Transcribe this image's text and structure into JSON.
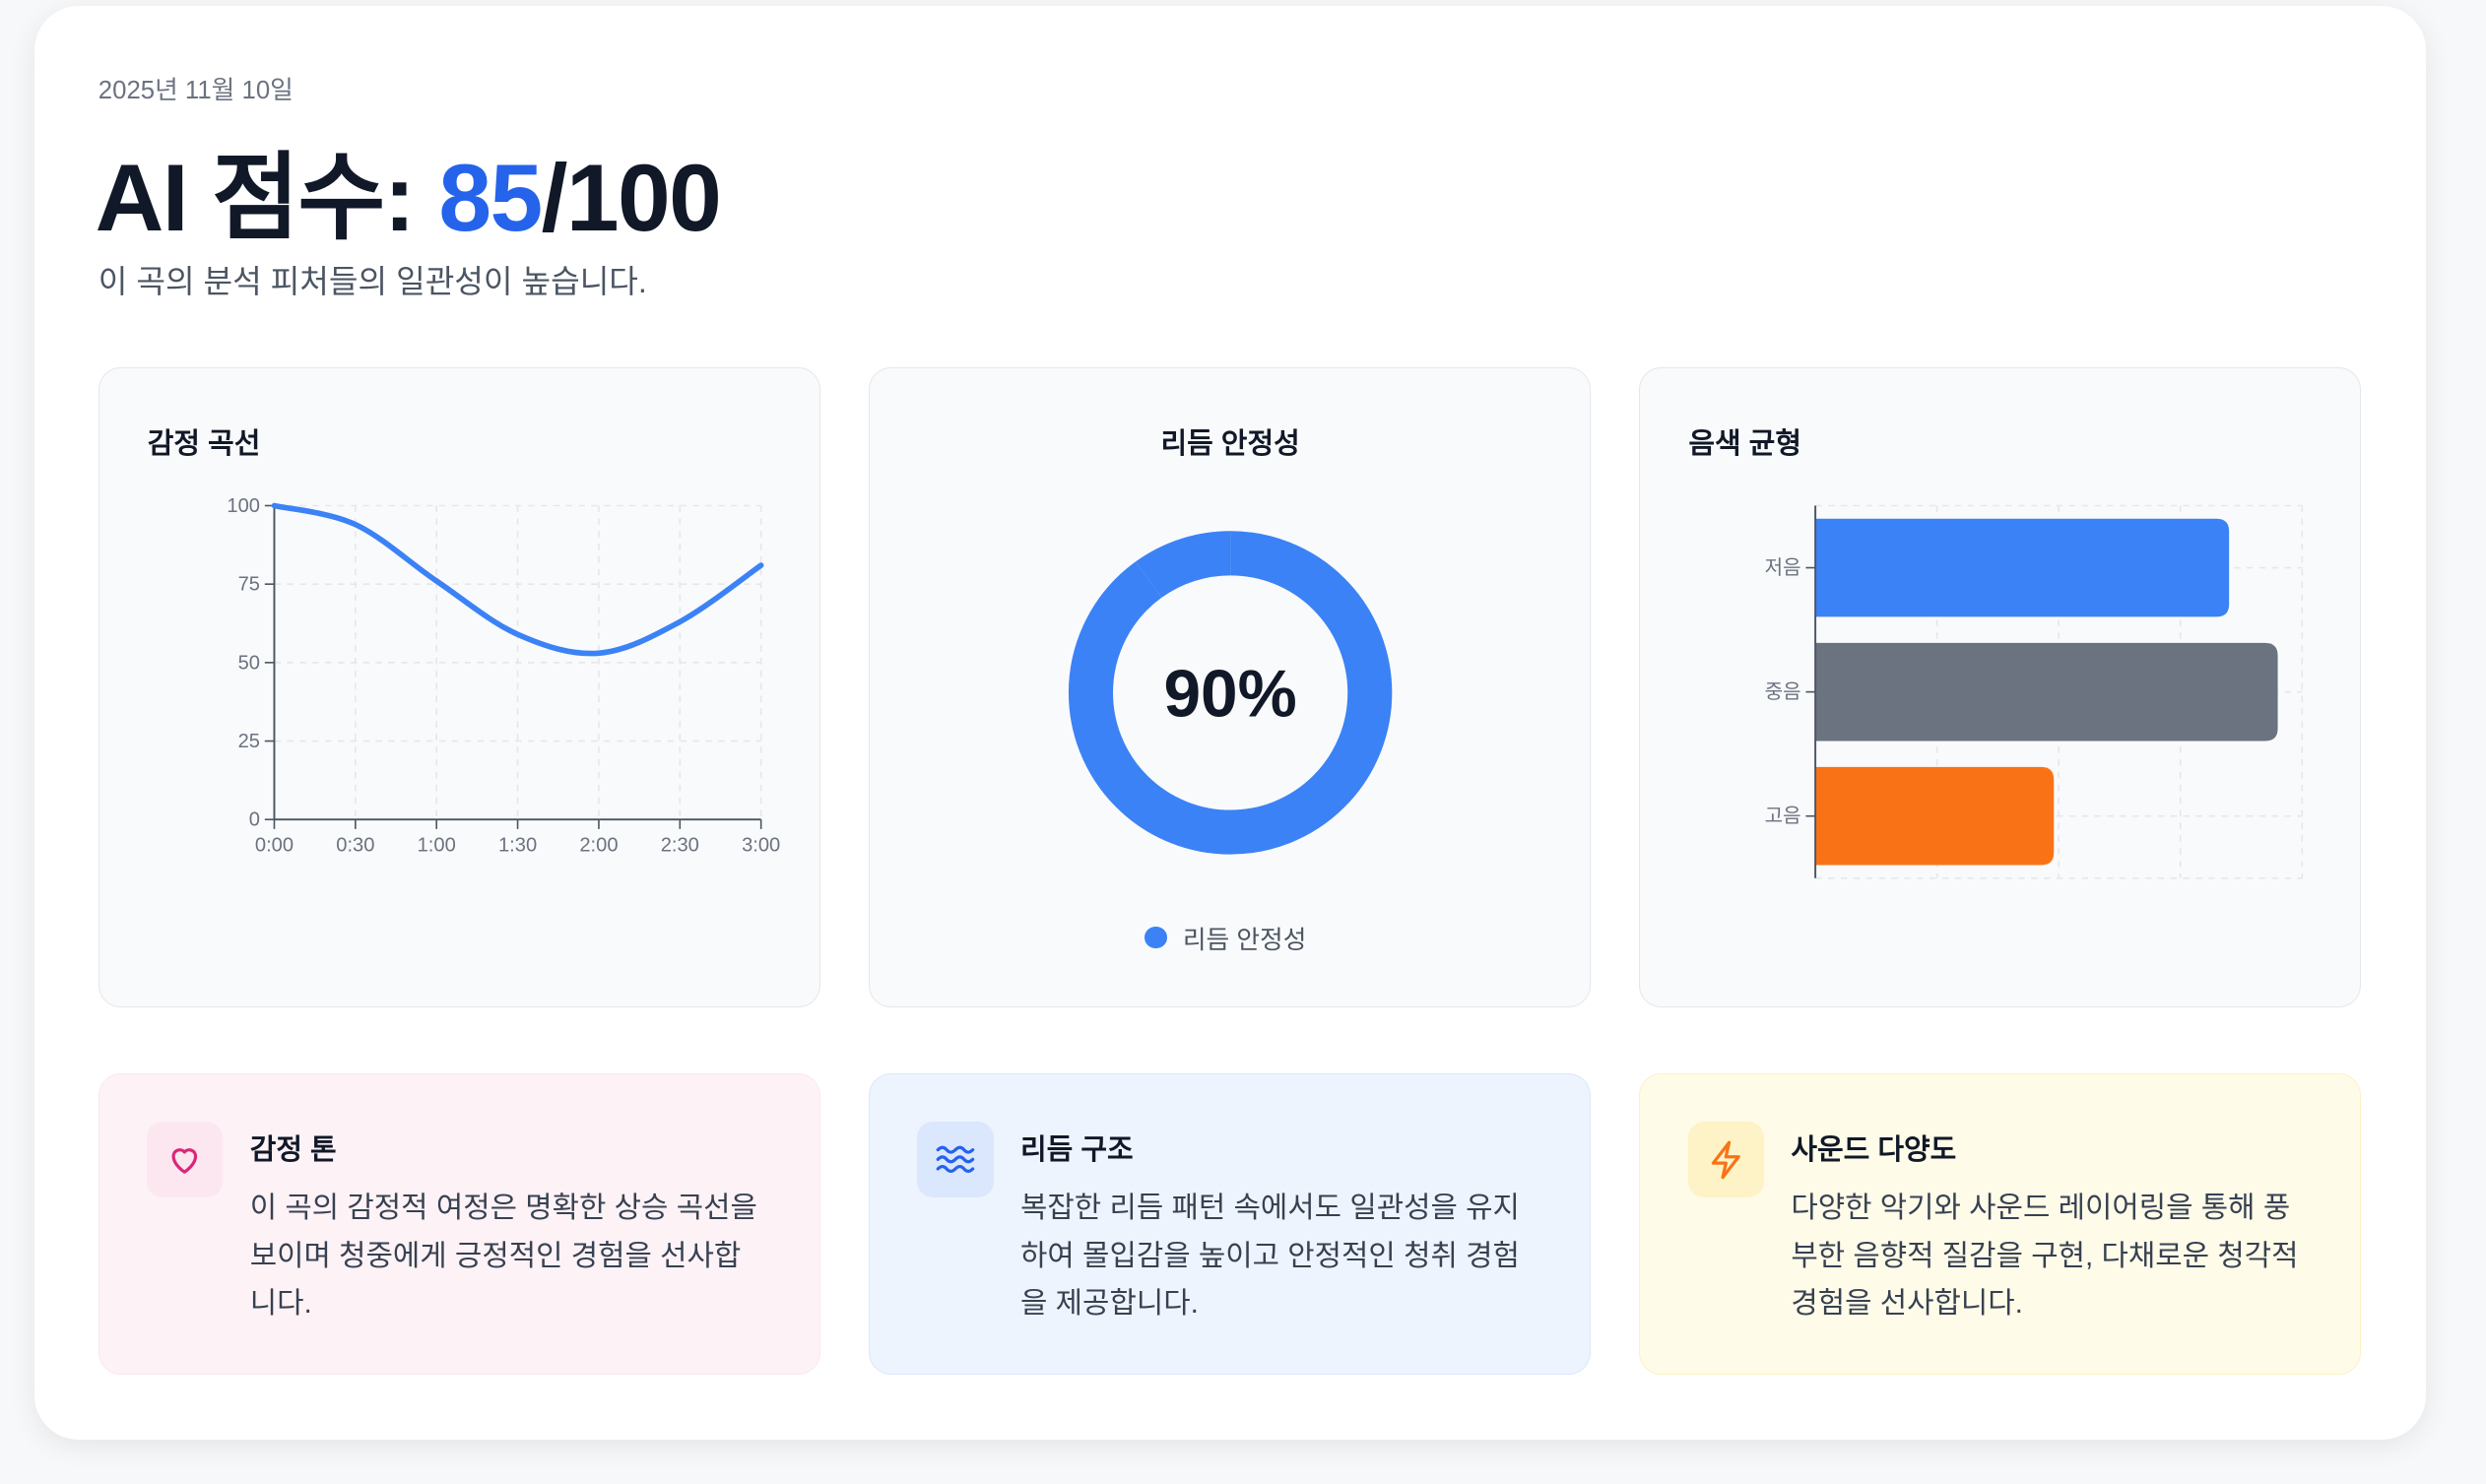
{
  "header": {
    "date": "2025년 11월 10일",
    "title_prefix": "AI 점수: ",
    "score": "85",
    "score_suffix": "/100",
    "subtitle": "이 곡의 분석 피처들의 일관성이 높습니다."
  },
  "colors": {
    "accent": "#2563eb",
    "blue": "#3b82f6",
    "gray": "#6b7280",
    "orange": "#f97316"
  },
  "chart_data": [
    {
      "type": "line",
      "title": "감정 곡선",
      "x": [
        "0:00",
        "0:30",
        "1:00",
        "1:30",
        "2:00",
        "2:30",
        "3:00"
      ],
      "values": [
        100,
        94,
        76,
        59,
        53,
        63,
        81
      ],
      "yticks": [
        "0",
        "25",
        "50",
        "75",
        "100"
      ],
      "ylim": [
        0,
        100
      ],
      "grid": true,
      "color": "#3b82f6"
    },
    {
      "type": "pie",
      "title": "리듬 안정성",
      "value": 90,
      "label": "90%",
      "legend": [
        "리듬 안정성"
      ],
      "legend_placement": "bottom",
      "color": "#3b82f6"
    },
    {
      "type": "bar",
      "orientation": "horizontal",
      "title": "음색 균형",
      "categories": [
        "저음",
        "중음",
        "고음"
      ],
      "values": [
        85,
        95,
        49
      ],
      "xlim": [
        0,
        100
      ],
      "grid": true,
      "colors": [
        "#3b82f6",
        "#6b7280",
        "#f97316"
      ]
    }
  ],
  "insights": [
    {
      "icon": "heart-icon",
      "title": "감정 톤",
      "lines": [
        "이 곡의 감정적 여정은 명확한 상승 곡선을",
        "보이며 청중에게 긍정적인 경험을 선사합",
        "니다."
      ]
    },
    {
      "icon": "waves-icon",
      "title": "리듬 구조",
      "lines": [
        "복잡한 리듬 패턴 속에서도 일관성을 유지",
        "하여 몰입감을 높이고 안정적인 청취 경험",
        "을 제공합니다."
      ]
    },
    {
      "icon": "lightning-icon",
      "title": "사운드 다양도",
      "lines": [
        "다양한 악기와 사운드 레이어링을 통해 풍",
        "부한 음향적 질감을 구현, 다채로운 청각적",
        "경험을 선사합니다."
      ]
    }
  ]
}
